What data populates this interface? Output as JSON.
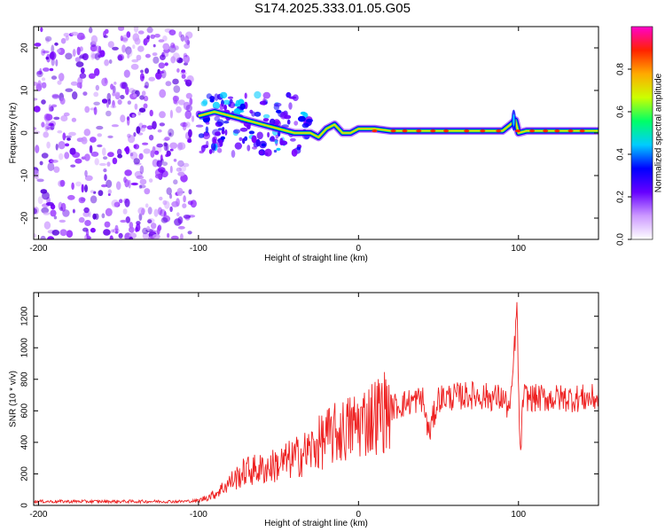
{
  "title": "S174.2025.333.01.05.G05",
  "chart_data": [
    {
      "type": "heatmap",
      "xlabel": "Height of straight line (km)",
      "ylabel": "Frequency (Hz)",
      "xlim": [
        -203,
        150
      ],
      "ylim": [
        -25,
        25
      ],
      "xticks": [
        -200,
        -100,
        0,
        100
      ],
      "yticks": [
        -20,
        -10,
        0,
        10,
        20
      ],
      "colorbar": {
        "label": "Normalized spectral amplitude",
        "range": [
          0,
          1
        ],
        "ticks": [
          0.0,
          0.2,
          0.4,
          0.6,
          0.8
        ],
        "colors": [
          "#ffffff",
          "#cc99ff",
          "#6600ff",
          "#0000ff",
          "#00ccff",
          "#00ff66",
          "#ccff00",
          "#ffaa00",
          "#ff2200",
          "#ff00cc"
        ]
      },
      "ridge": {
        "x": [
          -100,
          -90,
          -80,
          -70,
          -60,
          -50,
          -40,
          -30,
          -25,
          -20,
          -15,
          -10,
          -5,
          0,
          10,
          20,
          30,
          40,
          50,
          60,
          70,
          80,
          90,
          95,
          98,
          100,
          105,
          150
        ],
        "y": [
          4,
          5,
          4,
          3,
          2,
          1,
          0,
          0,
          -1,
          1,
          2,
          0,
          0,
          1,
          1,
          0.5,
          0.5,
          0.5,
          0.5,
          0.5,
          0.5,
          0.5,
          0.5,
          2,
          3,
          0,
          0.5,
          0.5
        ]
      }
    },
    {
      "type": "line",
      "xlabel": "Height of straight line (km)",
      "ylabel": "SNR (10 * v/v)",
      "xlim": [
        -203,
        150
      ],
      "ylim": [
        0,
        1350
      ],
      "xticks": [
        -200,
        -100,
        0,
        100
      ],
      "yticks": [
        0,
        200,
        400,
        600,
        800,
        1000,
        1200
      ],
      "color": "#ee2222",
      "series": [
        {
          "name": "SNR",
          "x": [
            -203,
            -180,
            -150,
            -125,
            -110,
            -100,
            -90,
            -80,
            -70,
            -60,
            -50,
            -40,
            -30,
            -20,
            -10,
            0,
            10,
            20,
            30,
            40,
            44,
            50,
            60,
            70,
            80,
            90,
            95,
            99,
            101,
            103,
            110,
            120,
            130,
            140,
            150
          ],
          "y": [
            25,
            25,
            25,
            25,
            25,
            30,
            70,
            150,
            220,
            230,
            260,
            300,
            350,
            430,
            470,
            520,
            570,
            620,
            650,
            680,
            450,
            680,
            690,
            700,
            690,
            680,
            600,
            1250,
            300,
            690,
            680,
            680,
            680,
            680,
            680
          ]
        }
      ]
    }
  ]
}
